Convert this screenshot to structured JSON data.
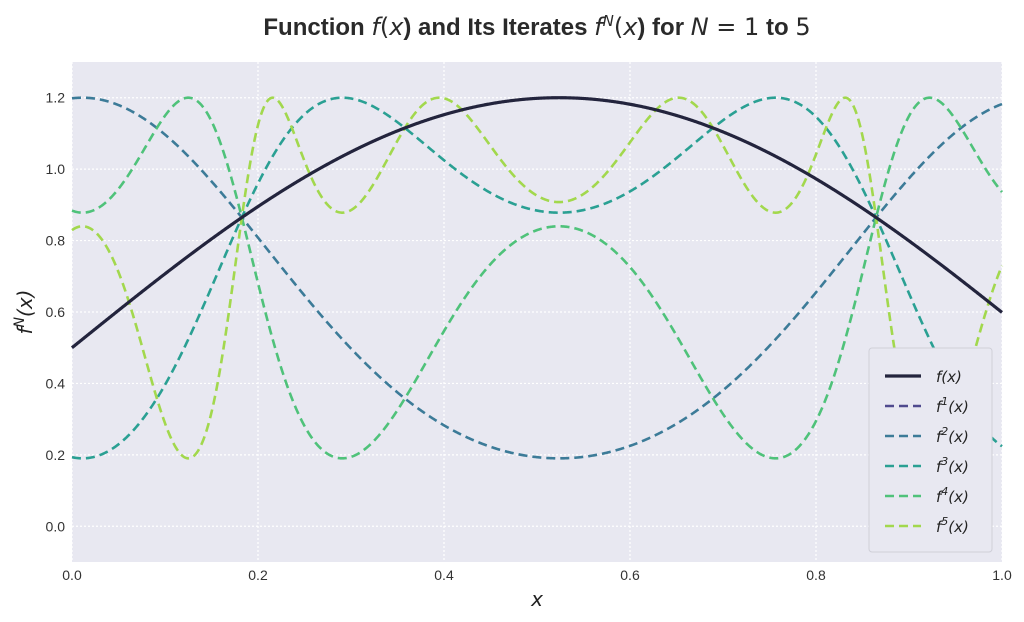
{
  "chart_data": {
    "type": "line",
    "title_parts": [
      "Function ",
      "f",
      "(",
      "x",
      ") and Its Iterates ",
      "f",
      "N",
      "(",
      "x",
      ") for ",
      "N",
      " = ",
      "1",
      " to ",
      "5"
    ],
    "xlabel": "x",
    "ylabel": "f^N(x)",
    "xlim": [
      0.0,
      1.0
    ],
    "ylim": [
      -0.1,
      1.3
    ],
    "xticks": [
      "0.0",
      "0.2",
      "0.4",
      "0.6",
      "0.8",
      "1.0"
    ],
    "yticks": [
      "0.0",
      "0.2",
      "0.4",
      "0.6",
      "0.8",
      "1.0",
      "1.2"
    ],
    "grid": true,
    "legend_position": "lower right",
    "function": "f(x) = 0.5 + 0.7 sin(3x)",
    "series": [
      {
        "name": "f(x)",
        "iterate": 0,
        "color": "#23243d",
        "style": "solid"
      },
      {
        "name": "f^1(x)",
        "iterate": 1,
        "color": "#4f4a8e",
        "style": "dashed"
      },
      {
        "name": "f^2(x)",
        "iterate": 2,
        "color": "#3c7b98",
        "style": "dashed"
      },
      {
        "name": "f^3(x)",
        "iterate": 3,
        "color": "#2aa093",
        "style": "dashed"
      },
      {
        "name": "f^4(x)",
        "iterate": 4,
        "color": "#4fc27a",
        "style": "dashed"
      },
      {
        "name": "f^5(x)",
        "iterate": 5,
        "color": "#a2d84d",
        "style": "dashed"
      }
    ],
    "legend": [
      {
        "base": "f",
        "sup": "",
        "arg": "(x)"
      },
      {
        "base": "f",
        "sup": "1",
        "arg": "(x)"
      },
      {
        "base": "f",
        "sup": "2",
        "arg": "(x)"
      },
      {
        "base": "f",
        "sup": "3",
        "arg": "(x)"
      },
      {
        "base": "f",
        "sup": "4",
        "arg": "(x)"
      },
      {
        "base": "f",
        "sup": "5",
        "arg": "(x)"
      }
    ]
  }
}
